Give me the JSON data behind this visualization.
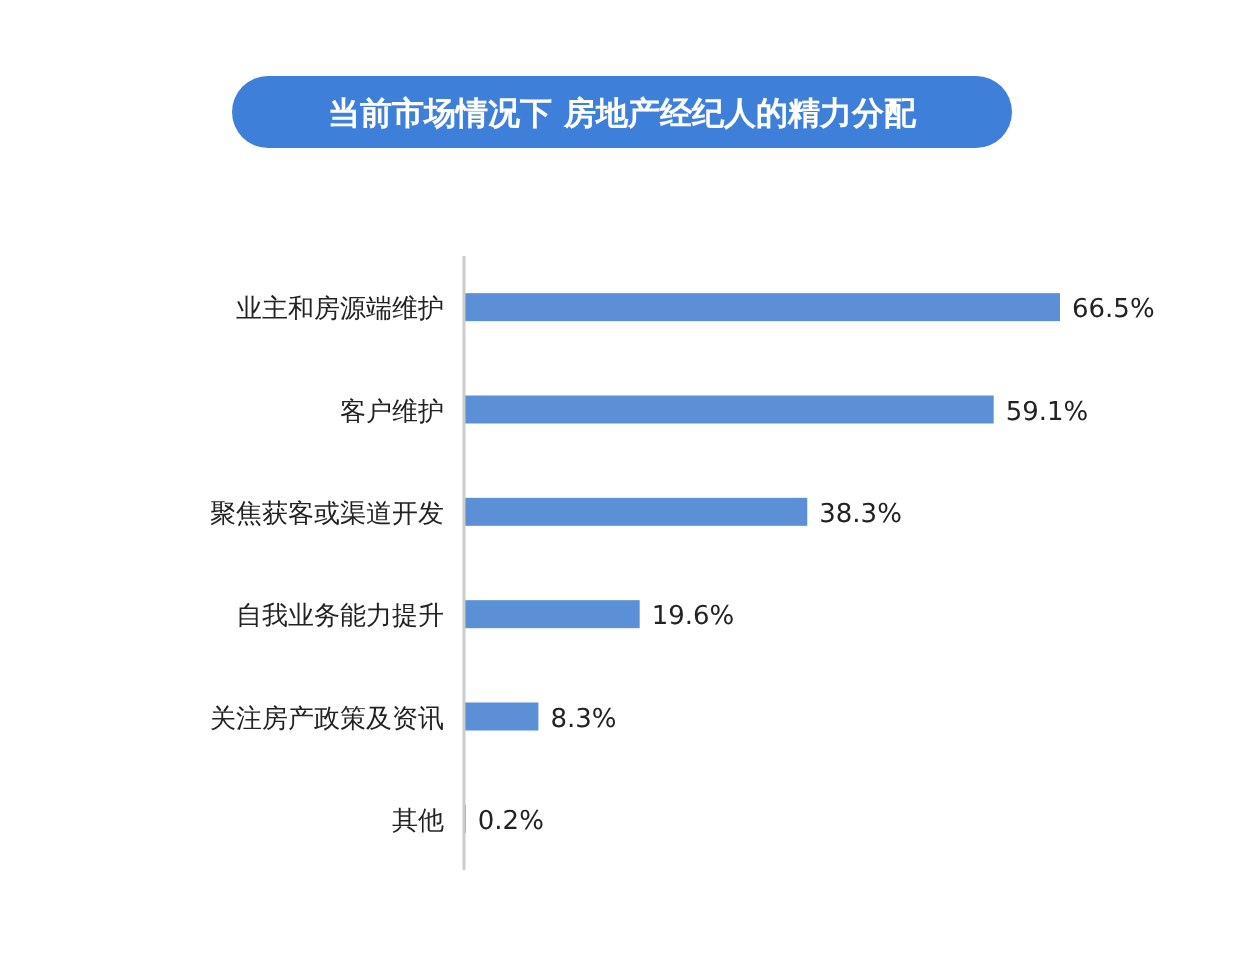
{
  "chart_data": {
    "type": "bar",
    "orientation": "horizontal",
    "title": "当前市场情况下 房地产经纪人的精力分配",
    "categories": [
      "业主和房源端维护",
      "客户维护",
      "聚焦获客或渠道开发",
      "自我业务能力提升",
      "关注房产政策及资讯",
      "其他"
    ],
    "values": [
      66.5,
      59.1,
      38.3,
      19.6,
      8.3,
      0.2
    ],
    "value_labels": [
      "66.5%",
      "59.1%",
      "38.3%",
      "19.6%",
      "8.3%",
      "0.2%"
    ],
    "color": "#5b8fd6"
  }
}
